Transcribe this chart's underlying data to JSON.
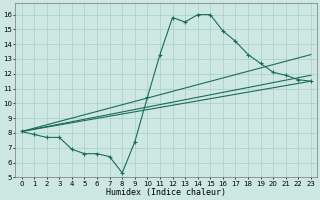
{
  "title": "",
  "xlabel": "Humidex (Indice chaleur)",
  "xlim": [
    -0.5,
    23.5
  ],
  "ylim": [
    5,
    16.8
  ],
  "xticks": [
    0,
    1,
    2,
    3,
    4,
    5,
    6,
    7,
    8,
    9,
    10,
    11,
    12,
    13,
    14,
    15,
    16,
    17,
    18,
    19,
    20,
    21,
    22,
    23
  ],
  "yticks": [
    5,
    6,
    7,
    8,
    9,
    10,
    11,
    12,
    13,
    14,
    15,
    16
  ],
  "bg_color": "#cde8e2",
  "grid_color": "#aacec8",
  "line_color": "#1a6b5a",
  "line1_x": [
    0,
    1,
    2,
    3,
    4,
    5,
    6,
    7,
    8,
    9,
    10,
    11,
    12,
    13,
    14,
    15,
    16,
    17,
    18,
    19,
    20,
    21,
    22,
    23
  ],
  "line1_y": [
    8.1,
    7.9,
    7.7,
    7.7,
    6.9,
    6.6,
    6.6,
    6.4,
    5.3,
    7.4,
    10.4,
    13.3,
    15.8,
    15.5,
    16.0,
    16.0,
    14.9,
    14.2,
    13.3,
    12.7,
    12.1,
    11.9,
    11.6,
    11.5
  ],
  "line2_x": [
    0,
    23
  ],
  "line2_y": [
    8.1,
    11.5
  ],
  "line3_x": [
    0,
    23
  ],
  "line3_y": [
    8.1,
    11.9
  ],
  "line4_x": [
    0,
    23
  ],
  "line4_y": [
    8.1,
    13.3
  ],
  "lw": 0.8,
  "xlabel_fontsize": 6,
  "tick_fontsize": 5
}
